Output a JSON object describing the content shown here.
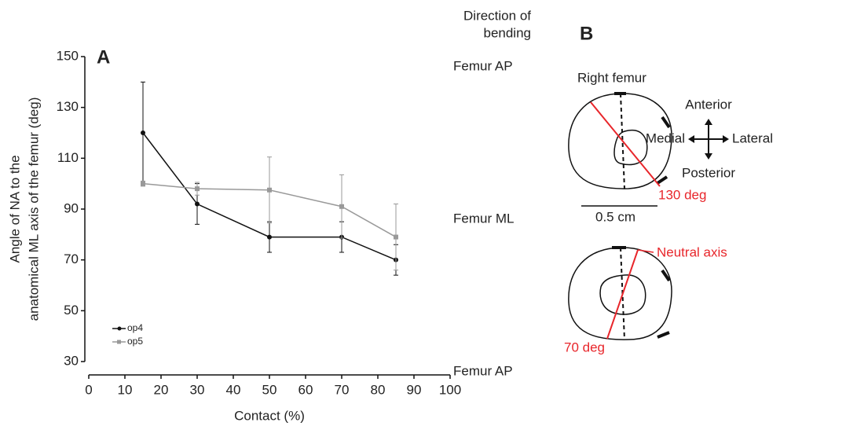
{
  "chart_data": {
    "type": "line",
    "panel_label": "A",
    "x_label": "Contact (%)",
    "y_label": [
      "Angle of NA to the",
      "anatomical ML axis of the femur (deg)"
    ],
    "x": [
      15,
      30,
      50,
      70,
      85
    ],
    "series": [
      {
        "name": "op4",
        "color": "#111111",
        "marker": "circle",
        "values": [
          120,
          92,
          79,
          79,
          70
        ],
        "errors": [
          20,
          8,
          6,
          6,
          6
        ]
      },
      {
        "name": "op5",
        "color": "#999999",
        "marker": "square",
        "values": [
          100,
          98,
          97.5,
          91,
          79
        ],
        "errors": [
          1,
          2.5,
          13,
          12.5,
          13
        ]
      }
    ],
    "xlim": [
      0,
      100
    ],
    "xticks": [
      0,
      10,
      20,
      30,
      40,
      50,
      60,
      70,
      80,
      90,
      100
    ],
    "ylim": [
      30,
      150
    ],
    "yticks": [
      30,
      50,
      70,
      90,
      110,
      130,
      150
    ],
    "legend": "lower left",
    "right_title": [
      "Direction of",
      "bending"
    ],
    "right_labels": [
      {
        "value": 150,
        "label": "Femur AP"
      },
      {
        "value": 90,
        "label": "Femur ML"
      },
      {
        "value": 30,
        "label": "Femur AP"
      }
    ]
  },
  "diagram": {
    "panel_label": "B",
    "title": "Right femur",
    "directions": {
      "anterior": "Anterior",
      "medial": "Medial",
      "lateral": "Lateral",
      "posterior": "Posterior"
    },
    "top_angle": "130 deg",
    "scale_bar": "0.5 cm",
    "neutral_axis": "Neutral axis",
    "bottom_angle": "70 deg"
  }
}
